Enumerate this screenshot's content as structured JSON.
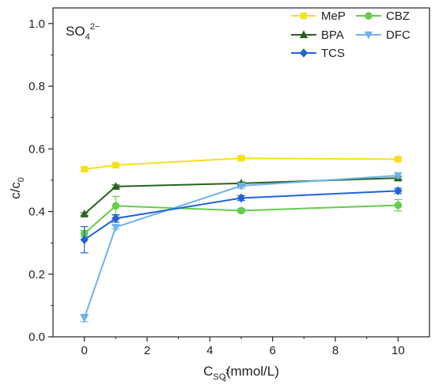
{
  "chart_data": {
    "type": "line",
    "annotation": {
      "base": "SO",
      "sub": "4",
      "sup": "2−"
    },
    "xlabel": {
      "base": "C",
      "sub": "SO",
      "subsub": "4",
      "subsup": "2-",
      "rest": "(mmol/L)"
    },
    "ylabel": {
      "base": "c/c",
      "sub": "0"
    },
    "xlim": [
      -1,
      11
    ],
    "ylim": [
      0,
      1.05
    ],
    "xticks": [
      0,
      2,
      4,
      6,
      8,
      10
    ],
    "yticks": [
      0.0,
      0.2,
      0.4,
      0.6,
      0.8,
      1.0
    ],
    "xtick_labels": [
      "0",
      "2",
      "4",
      "6",
      "8",
      "10"
    ],
    "ytick_labels": [
      "0.0",
      "0.2",
      "0.4",
      "0.6",
      "0.8",
      "1.0"
    ],
    "grid": false,
    "legend_position": "top-right",
    "x": [
      0,
      1,
      5,
      10
    ],
    "series": [
      {
        "name": "MeP",
        "color": "#f7e01a",
        "marker": "square",
        "values": [
          0.535,
          0.548,
          0.57,
          0.567
        ],
        "errors": [
          0.005,
          0.004,
          0.005,
          0.004
        ]
      },
      {
        "name": "CBZ",
        "color": "#66cc4d",
        "marker": "circle",
        "values": [
          0.33,
          0.418,
          0.403,
          0.42
        ],
        "errors": [
          0.01,
          0.03,
          0.006,
          0.018
        ]
      },
      {
        "name": "BPA",
        "color": "#25631f",
        "marker": "triangle-up",
        "values": [
          0.392,
          0.48,
          0.49,
          0.507
        ],
        "errors": [
          0.004,
          0.005,
          0.004,
          0.005
        ]
      },
      {
        "name": "DFC",
        "color": "#6fb3ec",
        "marker": "triangle-down",
        "values": [
          0.06,
          0.35,
          0.482,
          0.515
        ],
        "errors": [
          0.012,
          0.006,
          0.008,
          0.008
        ]
      },
      {
        "name": "TCS",
        "color": "#1f64d6",
        "marker": "diamond",
        "values": [
          0.31,
          0.378,
          0.443,
          0.466
        ],
        "errors": [
          0.042,
          0.012,
          0.008,
          0.008
        ]
      }
    ]
  }
}
